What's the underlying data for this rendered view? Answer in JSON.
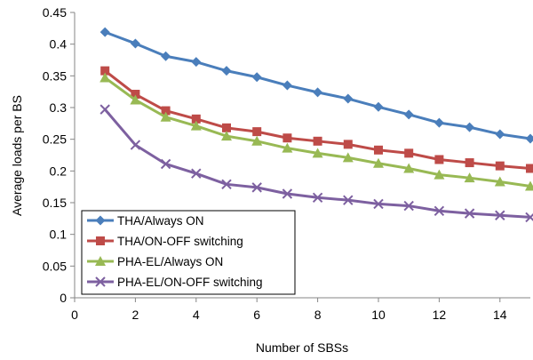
{
  "chart_data": {
    "type": "line",
    "xlabel": "Number of SBSs",
    "ylabel": "Average loads per BS",
    "xlim": [
      0,
      15
    ],
    "ylim": [
      0,
      0.45
    ],
    "xticks": [
      0,
      2,
      4,
      6,
      8,
      10,
      12,
      14
    ],
    "yticks": [
      0,
      0.05,
      0.1,
      0.15,
      0.2,
      0.25,
      0.3,
      0.35,
      0.4,
      0.45
    ],
    "ytick_labels": [
      "0",
      "0.05",
      "0.1",
      "0.15",
      "0.2",
      "0.25",
      "0.3",
      "0.35",
      "0.4",
      "0.45"
    ],
    "grid": false,
    "legend_position": "bottom-left",
    "x": [
      1,
      2,
      3,
      4,
      5,
      6,
      7,
      8,
      9,
      10,
      11,
      12,
      13,
      14,
      15
    ],
    "series": [
      {
        "name": "THA/Always ON",
        "color": "#4A7EBB",
        "marker": "diamond",
        "values": [
          0.419,
          0.401,
          0.381,
          0.372,
          0.358,
          0.348,
          0.335,
          0.324,
          0.314,
          0.301,
          0.289,
          0.276,
          0.269,
          0.258,
          0.251
        ]
      },
      {
        "name": "THA/ON-OFF switching",
        "color": "#BE4B48",
        "marker": "square",
        "values": [
          0.358,
          0.321,
          0.295,
          0.282,
          0.268,
          0.262,
          0.252,
          0.247,
          0.242,
          0.233,
          0.228,
          0.218,
          0.213,
          0.208,
          0.204
        ]
      },
      {
        "name": "PHA-EL/Always ON",
        "color": "#98B954",
        "marker": "triangle",
        "values": [
          0.347,
          0.312,
          0.285,
          0.271,
          0.255,
          0.247,
          0.236,
          0.228,
          0.221,
          0.212,
          0.204,
          0.194,
          0.189,
          0.183,
          0.176
        ]
      },
      {
        "name": "PHA-EL/ON-OFF switching",
        "color": "#7D60A0",
        "marker": "x",
        "values": [
          0.297,
          0.241,
          0.211,
          0.196,
          0.179,
          0.174,
          0.164,
          0.158,
          0.154,
          0.148,
          0.145,
          0.137,
          0.133,
          0.13,
          0.127
        ]
      }
    ]
  }
}
